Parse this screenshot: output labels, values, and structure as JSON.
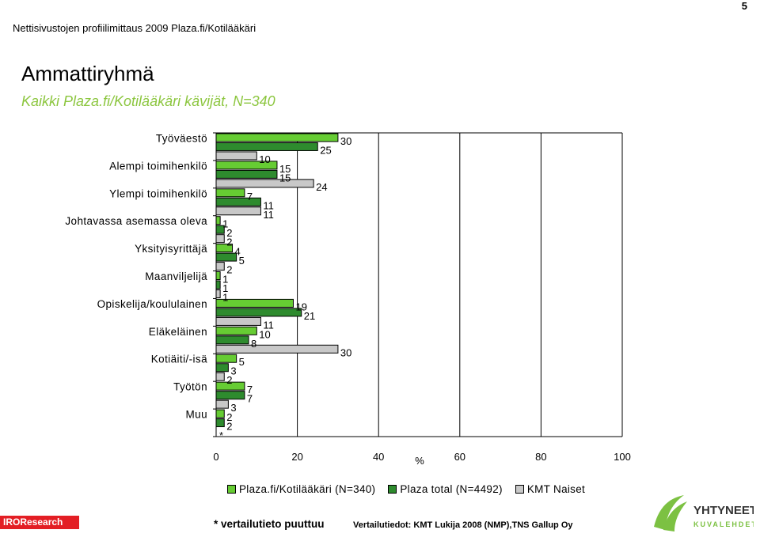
{
  "page_number": "5",
  "header": "Nettisivustojen profiilimittaus 2009 Plaza.fi/Kotilääkäri",
  "title": "Ammattiryhmä",
  "subtitle": "Kaikki Plaza.fi/Kotilääkäri kävijät, N=340",
  "footnote": "* vertailutieto puuttuu",
  "source_note": "Vertailutiedot: KMT Lukija 2008 (NMP),TNS Gallup Oy",
  "logos": {
    "left_text": "IROResearch",
    "right_text_1": "YHTYNEET",
    "right_text_2": "KUVALEHDET"
  },
  "chart_data": {
    "type": "bar",
    "orientation": "horizontal",
    "xlabel": "%",
    "xlim": [
      0,
      100
    ],
    "xticks": [
      "0",
      "20",
      "40",
      "60",
      "80",
      "100"
    ],
    "grid": "vertical",
    "legend_position": "bottom",
    "categories": [
      "Työväestö",
      "Alempi toimihenkilö",
      "Ylempi toimihenkilö",
      "Johtavassa asemassa oleva",
      "Yksityisyrittäjä",
      "Maanviljelijä",
      "Opiskelija/koululainen",
      "Eläkeläinen",
      "Kotiäiti/-isä",
      "Työtön",
      "Muu"
    ],
    "series": [
      {
        "name": "Plaza.fi/Kotilääkäri (N=340)",
        "color": "#66CC33",
        "values": [
          30,
          15,
          7,
          1,
          4,
          1,
          19,
          10,
          5,
          7,
          2
        ],
        "labels": [
          "30",
          "15",
          "7",
          "1",
          "4",
          "1",
          "19",
          "10",
          "5",
          "7",
          "2"
        ]
      },
      {
        "name": "Plaza total (N=4492)",
        "color": "#2E8B2E",
        "values": [
          25,
          15,
          11,
          2,
          5,
          1,
          21,
          8,
          3,
          7,
          2
        ],
        "labels": [
          "25",
          "15",
          "11",
          "2",
          "5",
          "1",
          "21",
          "8",
          "3",
          "7",
          "2"
        ]
      },
      {
        "name": "KMT Naiset",
        "color": "#C8C8C8",
        "values": [
          10,
          24,
          11,
          2,
          2,
          1,
          11,
          30,
          2,
          3,
          null
        ],
        "labels": [
          "10",
          "24",
          "11",
          "2",
          "2",
          "1",
          "11",
          "30",
          "2",
          "3",
          "*"
        ]
      }
    ]
  }
}
